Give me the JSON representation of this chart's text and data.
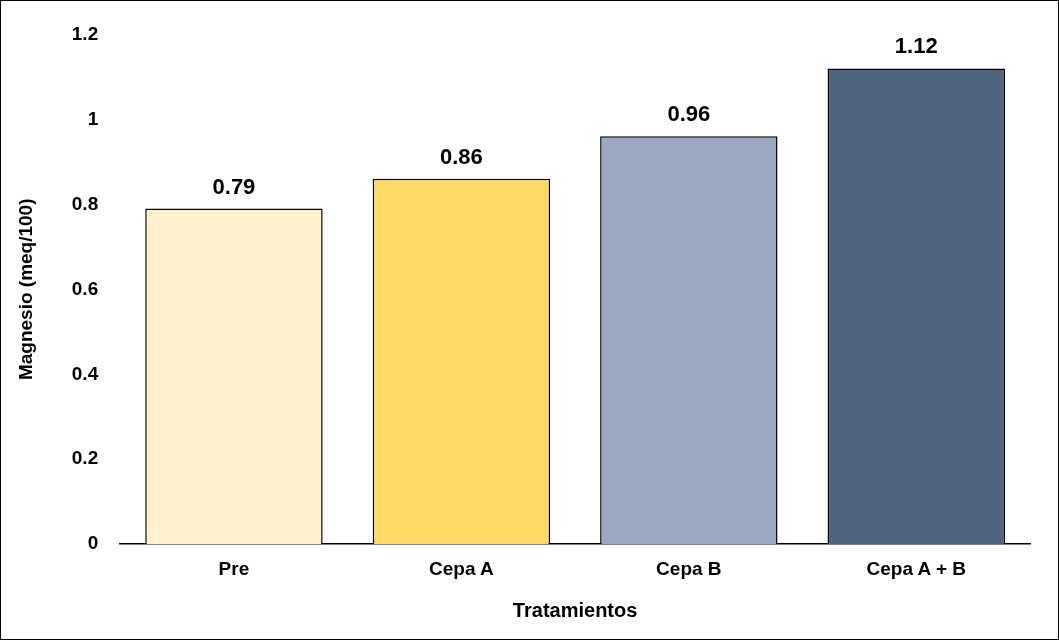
{
  "chart_data": {
    "type": "bar",
    "xlabel": "Tratamientos",
    "ylabel": "Magnesio (meq/100)",
    "categories": [
      "Pre",
      "Cepa A",
      "Cepa B",
      "Cepa A + B"
    ],
    "values": [
      0.79,
      0.86,
      0.96,
      1.12
    ],
    "colors": [
      "#fff2cc",
      "#ffd966",
      "#9aa9bf",
      "#50647e"
    ],
    "ylim": [
      0,
      1.2
    ],
    "yticks": [
      0,
      0.2,
      0.4,
      0.6,
      0.8,
      1,
      1.2
    ],
    "grid": false,
    "legend": false,
    "data_labels": true
  }
}
